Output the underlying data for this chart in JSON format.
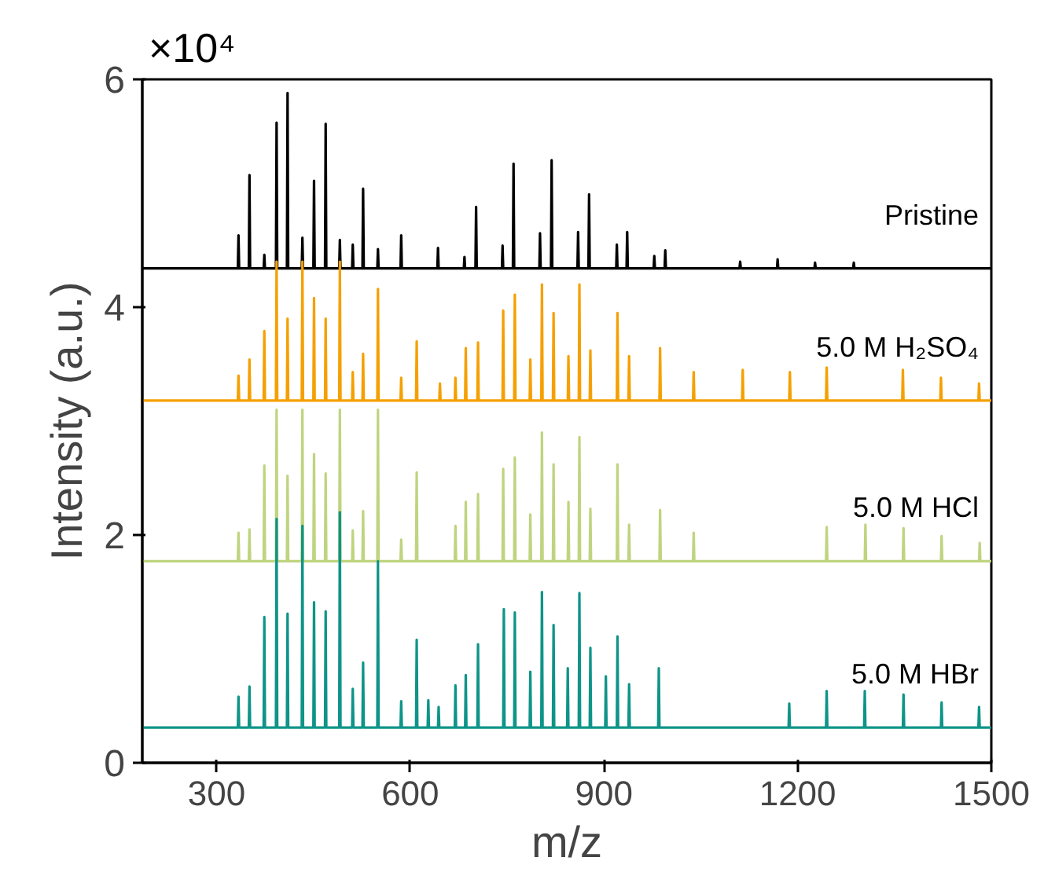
{
  "chart_data": {
    "type": "line",
    "xlabel": "m/z",
    "ylabel": "Intensity (a.u.)",
    "annotations": [
      "×10⁴"
    ],
    "xlim": [
      185,
      1500
    ],
    "xticks": [
      300,
      600,
      900,
      1200,
      1500
    ],
    "ylim": [
      0,
      6
    ],
    "yticks": [
      0,
      2,
      4,
      6
    ],
    "grid": false,
    "legend": false,
    "marker": "none",
    "line_style": "solid",
    "series": [
      {
        "name": "Pristine",
        "color": "#000000",
        "x": [
          185,
          333,
          334,
          335,
          350,
          351,
          352,
          373,
          374,
          375,
          392,
          393,
          394,
          409,
          410,
          411,
          432,
          433,
          434,
          450,
          451,
          452,
          468,
          469,
          470,
          490,
          491,
          492,
          510,
          511,
          512,
          526,
          527,
          528,
          549,
          550,
          551,
          585,
          586,
          587,
          642,
          643,
          644,
          683,
          684,
          685,
          701,
          702,
          703,
          742,
          743,
          744,
          759,
          760,
          761,
          800,
          801,
          802,
          818,
          819,
          820,
          859,
          860,
          861,
          876,
          877,
          878,
          919,
          920,
          921,
          935,
          936,
          937,
          977,
          978,
          979,
          994,
          995,
          996,
          1110,
          1111,
          1112,
          1168,
          1169,
          1170,
          1226,
          1227,
          1228,
          1286,
          1287,
          1288,
          1500
        ],
        "values": [
          4.34,
          4.34,
          4.63,
          4.34,
          4.34,
          5.16,
          4.34,
          4.34,
          4.46,
          4.34,
          4.34,
          5.62,
          4.34,
          4.34,
          5.88,
          4.34,
          4.34,
          4.61,
          4.34,
          4.34,
          5.11,
          4.34,
          4.34,
          5.61,
          4.34,
          4.34,
          4.59,
          4.34,
          4.34,
          4.55,
          4.34,
          4.34,
          5.04,
          4.34,
          4.34,
          4.51,
          4.34,
          4.34,
          4.63,
          4.34,
          4.34,
          4.52,
          4.34,
          4.34,
          4.44,
          4.34,
          4.34,
          4.88,
          4.34,
          4.34,
          4.54,
          4.34,
          4.34,
          5.26,
          4.34,
          4.34,
          4.65,
          4.34,
          4.34,
          5.29,
          4.34,
          4.34,
          4.66,
          4.34,
          4.34,
          4.99,
          4.34,
          4.34,
          4.55,
          4.34,
          4.34,
          4.66,
          4.34,
          4.34,
          4.45,
          4.34,
          4.34,
          4.5,
          4.34,
          4.34,
          4.4,
          4.34,
          4.34,
          4.42,
          4.34,
          4.34,
          4.39,
          4.34,
          4.34,
          4.39,
          4.34,
          4.34
        ]
      },
      {
        "name": "5.0 M H₂SO₄",
        "color": "#f5a000",
        "x": [
          185,
          333,
          334,
          335,
          350,
          351,
          352,
          373,
          374,
          375,
          392,
          393,
          394,
          409,
          410,
          411,
          432,
          433,
          434,
          450,
          451,
          452,
          468,
          469,
          470,
          490,
          491,
          492,
          510,
          511,
          512,
          526,
          527,
          528,
          549,
          550,
          551,
          585,
          586,
          587,
          609,
          610,
          611,
          645,
          646,
          647,
          669,
          670,
          671,
          685,
          686,
          687,
          704,
          705,
          706,
          743,
          744,
          745,
          761,
          762,
          763,
          785,
          786,
          787,
          803,
          804,
          805,
          821,
          822,
          823,
          844,
          845,
          846,
          861,
          862,
          863,
          878,
          879,
          880,
          920,
          921,
          922,
          938,
          939,
          940,
          986,
          987,
          988,
          1038,
          1039,
          1040,
          1114,
          1115,
          1116,
          1187,
          1188,
          1189,
          1244,
          1245,
          1246,
          1362,
          1363,
          1364,
          1421,
          1422,
          1423,
          1480,
          1481,
          1482,
          1500
        ],
        "values": [
          3.18,
          3.18,
          3.4,
          3.18,
          3.18,
          3.54,
          3.18,
          3.18,
          3.79,
          3.18,
          3.18,
          4.4,
          3.18,
          3.18,
          3.9,
          3.18,
          3.18,
          4.4,
          3.18,
          3.18,
          4.08,
          3.18,
          3.18,
          3.9,
          3.18,
          3.18,
          4.4,
          3.18,
          3.18,
          3.43,
          3.18,
          3.18,
          3.59,
          3.18,
          3.18,
          4.16,
          3.18,
          3.18,
          3.38,
          3.18,
          3.18,
          3.7,
          3.18,
          3.18,
          3.33,
          3.18,
          3.18,
          3.38,
          3.18,
          3.18,
          3.64,
          3.18,
          3.18,
          3.69,
          3.18,
          3.18,
          3.97,
          3.18,
          3.18,
          4.11,
          3.18,
          3.18,
          3.54,
          3.18,
          3.18,
          4.2,
          3.18,
          3.18,
          3.95,
          3.18,
          3.18,
          3.57,
          3.18,
          3.18,
          4.2,
          3.18,
          3.18,
          3.62,
          3.18,
          3.18,
          3.95,
          3.18,
          3.18,
          3.57,
          3.18,
          3.18,
          3.64,
          3.18,
          3.18,
          3.43,
          3.18,
          3.18,
          3.45,
          3.18,
          3.18,
          3.43,
          3.18,
          3.18,
          3.47,
          3.18,
          3.18,
          3.45,
          3.18,
          3.18,
          3.38,
          3.18,
          3.18,
          3.33,
          3.18,
          3.18
        ]
      },
      {
        "name": "5.0 M HCl",
        "color": "#bfd47f",
        "x": [
          185,
          333,
          334,
          335,
          350,
          351,
          352,
          373,
          374,
          375,
          392,
          393,
          394,
          409,
          410,
          411,
          432,
          433,
          434,
          450,
          451,
          452,
          468,
          469,
          470,
          490,
          491,
          492,
          510,
          511,
          512,
          526,
          527,
          528,
          549,
          550,
          551,
          585,
          586,
          587,
          609,
          610,
          611,
          669,
          670,
          671,
          685,
          686,
          687,
          704,
          705,
          706,
          743,
          744,
          745,
          761,
          762,
          763,
          785,
          786,
          787,
          803,
          804,
          805,
          821,
          822,
          823,
          844,
          845,
          846,
          861,
          862,
          863,
          878,
          879,
          880,
          920,
          921,
          922,
          938,
          939,
          940,
          986,
          987,
          988,
          1038,
          1039,
          1040,
          1244,
          1245,
          1246,
          1304,
          1305,
          1306,
          1363,
          1364,
          1365,
          1422,
          1423,
          1424,
          1481,
          1482,
          1483,
          1500
        ],
        "values": [
          1.77,
          1.77,
          2.02,
          1.77,
          1.77,
          2.05,
          1.77,
          1.77,
          2.61,
          1.77,
          1.77,
          3.1,
          1.77,
          1.77,
          2.52,
          1.77,
          1.77,
          3.1,
          1.77,
          1.77,
          2.71,
          1.77,
          1.77,
          2.54,
          1.77,
          1.77,
          3.1,
          1.77,
          1.77,
          2.04,
          1.77,
          1.77,
          2.21,
          1.77,
          1.77,
          3.1,
          1.77,
          1.77,
          1.96,
          1.77,
          1.77,
          2.55,
          1.77,
          1.77,
          2.08,
          1.77,
          1.77,
          2.29,
          1.77,
          1.77,
          2.36,
          1.77,
          1.77,
          2.58,
          1.77,
          1.77,
          2.68,
          1.77,
          1.77,
          2.18,
          1.77,
          1.77,
          2.9,
          1.77,
          1.77,
          2.62,
          1.77,
          1.77,
          2.29,
          1.77,
          1.77,
          2.86,
          1.77,
          1.77,
          2.23,
          1.77,
          1.77,
          2.62,
          1.77,
          1.77,
          2.09,
          1.77,
          1.77,
          2.22,
          1.77,
          1.77,
          2.02,
          1.77,
          1.77,
          2.07,
          1.77,
          1.77,
          2.09,
          1.77,
          1.77,
          2.06,
          1.77,
          1.77,
          1.99,
          1.77,
          1.77,
          1.93,
          1.77,
          1.77
        ]
      },
      {
        "name": "5.0 M HBr",
        "color": "#0e9488",
        "x": [
          185,
          333,
          334,
          335,
          350,
          351,
          352,
          373,
          374,
          375,
          392,
          393,
          394,
          409,
          410,
          411,
          432,
          433,
          434,
          450,
          451,
          452,
          468,
          469,
          470,
          490,
          491,
          492,
          510,
          511,
          512,
          526,
          527,
          528,
          549,
          550,
          551,
          585,
          586,
          587,
          609,
          610,
          611,
          627,
          628,
          629,
          643,
          644,
          645,
          669,
          670,
          671,
          685,
          686,
          687,
          704,
          705,
          706,
          744,
          745,
          746,
          761,
          762,
          763,
          785,
          786,
          787,
          803,
          804,
          805,
          821,
          822,
          823,
          843,
          844,
          845,
          861,
          862,
          863,
          878,
          879,
          880,
          902,
          903,
          904,
          920,
          921,
          922,
          938,
          939,
          940,
          984,
          985,
          986,
          1186,
          1187,
          1188,
          1244,
          1245,
          1246,
          1303,
          1304,
          1305,
          1363,
          1364,
          1365,
          1422,
          1423,
          1424,
          1480,
          1481,
          1482,
          1500
        ],
        "values": [
          0.31,
          0.31,
          0.58,
          0.31,
          0.31,
          0.67,
          0.31,
          0.31,
          1.28,
          0.31,
          0.31,
          2.14,
          0.31,
          0.31,
          1.31,
          0.31,
          0.31,
          2.08,
          0.31,
          0.31,
          1.41,
          0.31,
          0.31,
          1.33,
          0.31,
          0.31,
          2.2,
          0.31,
          0.31,
          0.65,
          0.31,
          0.31,
          0.88,
          0.31,
          0.31,
          1.77,
          0.31,
          0.31,
          0.54,
          0.31,
          0.31,
          1.08,
          0.31,
          0.31,
          0.55,
          0.31,
          0.31,
          0.49,
          0.31,
          0.31,
          0.68,
          0.31,
          0.31,
          0.77,
          0.31,
          0.31,
          1.04,
          0.31,
          0.31,
          1.35,
          0.31,
          0.31,
          1.32,
          0.31,
          0.31,
          0.8,
          0.31,
          0.31,
          1.5,
          0.31,
          0.31,
          1.21,
          0.31,
          0.31,
          0.83,
          0.31,
          0.31,
          1.49,
          0.31,
          0.31,
          1.01,
          0.31,
          0.31,
          0.76,
          0.31,
          0.31,
          1.11,
          0.31,
          0.31,
          0.69,
          0.31,
          0.31,
          0.83,
          0.31,
          0.31,
          0.52,
          0.31,
          0.31,
          0.63,
          0.31,
          0.31,
          0.63,
          0.31,
          0.31,
          0.6,
          0.31,
          0.31,
          0.53,
          0.31,
          0.31,
          0.49,
          0.31,
          0.31
        ]
      }
    ]
  }
}
